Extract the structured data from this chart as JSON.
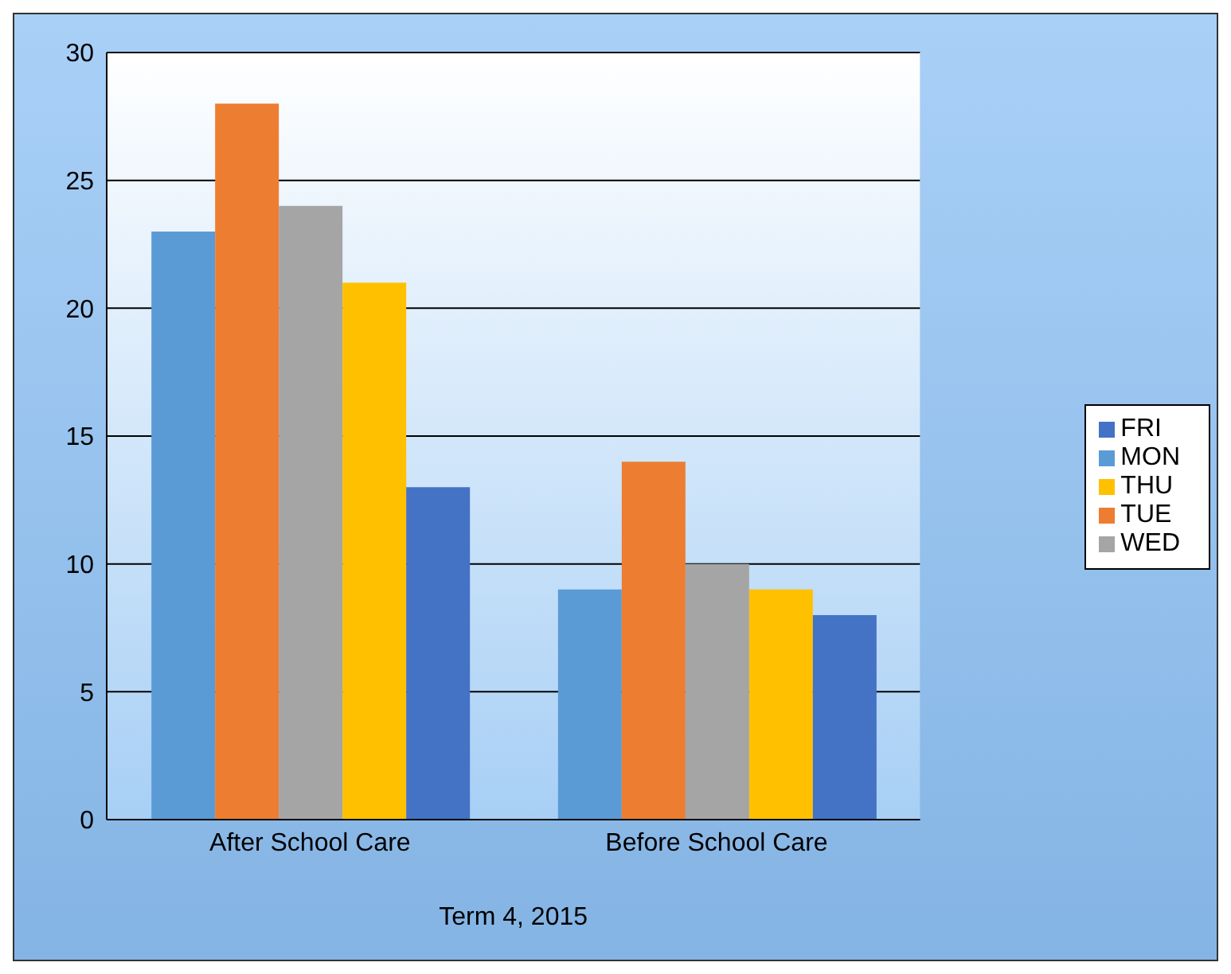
{
  "chart_data": {
    "type": "bar",
    "xlabel": "Term 4, 2015",
    "categories": [
      "After School Care",
      "Before School Care"
    ],
    "series": [
      {
        "name": "MON",
        "color": "#5b9bd5",
        "values": [
          23,
          9
        ]
      },
      {
        "name": "TUE",
        "color": "#ed7d31",
        "values": [
          28,
          14
        ]
      },
      {
        "name": "WED",
        "color": "#a5a5a5",
        "values": [
          24,
          10
        ]
      },
      {
        "name": "THU",
        "color": "#ffc000",
        "values": [
          21,
          9
        ]
      },
      {
        "name": "FRI",
        "color": "#4472c4",
        "values": [
          13,
          8
        ]
      }
    ],
    "ylim": [
      0,
      30
    ],
    "yticks": [
      0,
      5,
      10,
      15,
      20,
      25,
      30
    ],
    "grid": "y",
    "legend": "right"
  }
}
